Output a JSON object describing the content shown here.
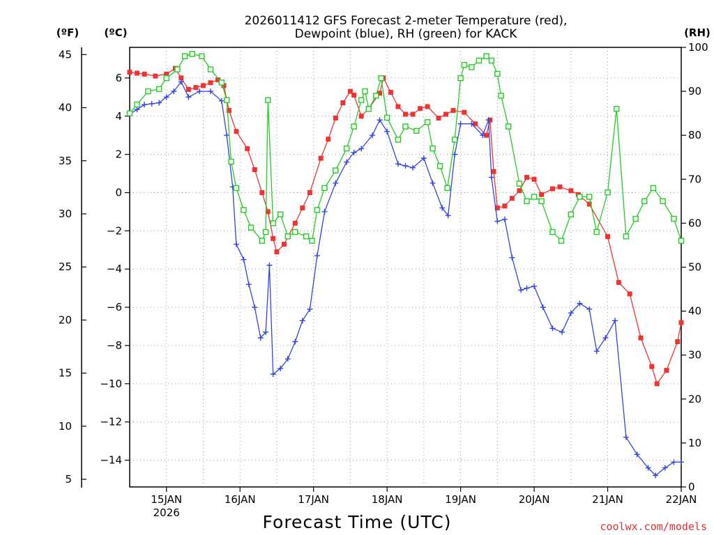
{
  "chart_data": {
    "type": "line",
    "title_line1": "2026011412 GFS Forecast 2-meter Temperature (red),",
    "title_line2": "Dewpoint (blue), RH (green) for KACK",
    "xlabel": "Forecast Time (UTC)",
    "credit": "coolwx.com/models",
    "units": {
      "fahrenheit": "(ºF)",
      "celsius": "(ºC)",
      "rh": "(RH)"
    },
    "x_range_days": [
      14.5,
      22.0
    ],
    "celsius_range": [
      -15.4,
      7.6
    ],
    "rh_range": [
      0,
      100
    ],
    "x_ticks": [
      {
        "day": 15,
        "label": "15JAN",
        "sublabel": "2026"
      },
      {
        "day": 16,
        "label": "16JAN"
      },
      {
        "day": 17,
        "label": "17JAN"
      },
      {
        "day": 18,
        "label": "18JAN"
      },
      {
        "day": 19,
        "label": "19JAN"
      },
      {
        "day": 20,
        "label": "20JAN"
      },
      {
        "day": 21,
        "label": "21JAN"
      },
      {
        "day": 22,
        "label": "22JAN"
      }
    ],
    "celsius_ticks": [
      {
        "value": 6,
        "label": "6"
      },
      {
        "value": 4,
        "label": "4"
      },
      {
        "value": 2,
        "label": "2"
      },
      {
        "value": 0,
        "label": "0"
      },
      {
        "value": -2,
        "label": "−2"
      },
      {
        "value": -4,
        "label": "−4"
      },
      {
        "value": -6,
        "label": "−6"
      },
      {
        "value": -8,
        "label": "−8"
      },
      {
        "value": -10,
        "label": "−10"
      },
      {
        "value": -12,
        "label": "−12"
      },
      {
        "value": -14,
        "label": "−14"
      }
    ],
    "fahrenheit_ticks": [
      {
        "value": 45,
        "label": "45"
      },
      {
        "value": 40,
        "label": "40"
      },
      {
        "value": 35,
        "label": "35"
      },
      {
        "value": 30,
        "label": "30"
      },
      {
        "value": 25,
        "label": "25"
      },
      {
        "value": 20,
        "label": "20"
      },
      {
        "value": 15,
        "label": "15"
      },
      {
        "value": 10,
        "label": "10"
      },
      {
        "value": 5,
        "label": "5"
      }
    ],
    "rh_ticks": [
      {
        "value": 100,
        "label": "100"
      },
      {
        "value": 90,
        "label": "90"
      },
      {
        "value": 80,
        "label": "80"
      },
      {
        "value": 70,
        "label": "70"
      },
      {
        "value": 60,
        "label": "60"
      },
      {
        "value": 50,
        "label": "50"
      },
      {
        "value": 40,
        "label": "40"
      },
      {
        "value": 30,
        "label": "30"
      },
      {
        "value": 20,
        "label": "20"
      },
      {
        "value": 10,
        "label": "10"
      },
      {
        "value": 0,
        "label": "0"
      }
    ],
    "series": [
      {
        "name": "Temperature",
        "unit": "C",
        "color": "#ee3333",
        "marker": "filled-square",
        "anchors": [
          [
            14.5,
            6.3
          ],
          [
            14.7,
            6.2
          ],
          [
            14.85,
            6.1
          ],
          [
            15.0,
            6.2
          ],
          [
            15.12,
            6.5
          ],
          [
            15.2,
            6.0
          ],
          [
            15.3,
            5.4
          ],
          [
            15.5,
            5.6
          ],
          [
            15.7,
            5.9
          ],
          [
            15.78,
            5.6
          ],
          [
            15.85,
            4.3
          ],
          [
            15.95,
            3.2
          ],
          [
            16.1,
            2.3
          ],
          [
            16.2,
            1.2
          ],
          [
            16.3,
            0.0
          ],
          [
            16.38,
            -1.0
          ],
          [
            16.45,
            -2.4
          ],
          [
            16.5,
            -3.1
          ],
          [
            16.6,
            -2.7
          ],
          [
            16.75,
            -1.6
          ],
          [
            16.95,
            0.0
          ],
          [
            17.1,
            1.8
          ],
          [
            17.2,
            2.8
          ],
          [
            17.3,
            3.9
          ],
          [
            17.4,
            4.7
          ],
          [
            17.5,
            5.3
          ],
          [
            17.55,
            5.1
          ],
          [
            17.65,
            4.0
          ],
          [
            17.75,
            4.4
          ],
          [
            17.9,
            5.2
          ],
          [
            17.95,
            6.0
          ],
          [
            18.15,
            4.5
          ],
          [
            18.25,
            4.1
          ],
          [
            18.35,
            4.1
          ],
          [
            18.45,
            4.4
          ],
          [
            18.55,
            4.5
          ],
          [
            18.7,
            3.9
          ],
          [
            18.8,
            4.1
          ],
          [
            18.9,
            4.3
          ],
          [
            19.05,
            4.2
          ],
          [
            19.2,
            3.6
          ],
          [
            19.35,
            3.0
          ],
          [
            19.4,
            3.8
          ],
          [
            19.45,
            1.1
          ],
          [
            19.5,
            -0.8
          ]
        ],
        "points": [
          [
            19.6,
            -0.7
          ],
          [
            19.7,
            -0.3
          ],
          [
            19.8,
            0.1
          ],
          [
            19.9,
            0.8
          ],
          [
            20.0,
            0.7
          ],
          [
            20.1,
            -0.1
          ],
          [
            20.25,
            0.2
          ],
          [
            20.35,
            0.3
          ],
          [
            20.5,
            0.1
          ],
          [
            20.6,
            -0.1
          ],
          [
            20.75,
            -0.6
          ],
          [
            21.0,
            -2.3
          ],
          [
            21.15,
            -4.7
          ],
          [
            21.3,
            -5.3
          ],
          [
            21.45,
            -7.6
          ],
          [
            21.6,
            -9.1
          ],
          [
            21.67,
            -10.0
          ],
          [
            21.8,
            -9.3
          ],
          [
            21.95,
            -7.8
          ],
          [
            22.0,
            -6.8
          ]
        ]
      },
      {
        "name": "Dewpoint",
        "unit": "C",
        "color": "#3344dd",
        "marker": "plus",
        "anchors": [
          [
            14.5,
            4.1
          ],
          [
            14.7,
            4.6
          ],
          [
            14.9,
            4.7
          ],
          [
            15.0,
            5.0
          ],
          [
            15.1,
            5.3
          ],
          [
            15.2,
            5.8
          ],
          [
            15.3,
            5.0
          ],
          [
            15.45,
            5.3
          ],
          [
            15.6,
            5.3
          ],
          [
            15.75,
            4.8
          ],
          [
            15.82,
            3.0
          ],
          [
            15.9,
            0.3
          ],
          [
            15.95,
            -2.7
          ],
          [
            16.05,
            -3.5
          ],
          [
            16.12,
            -4.8
          ],
          [
            16.2,
            -6.0
          ],
          [
            16.28,
            -7.6
          ],
          [
            16.35,
            -7.3
          ],
          [
            16.4,
            -3.8
          ],
          [
            16.45,
            -9.5
          ],
          [
            16.55,
            -9.2
          ],
          [
            16.65,
            -8.7
          ],
          [
            16.75,
            -7.8
          ],
          [
            16.85,
            -6.7
          ],
          [
            16.95,
            -6.1
          ],
          [
            17.05,
            -3.3
          ],
          [
            17.15,
            -1.0
          ],
          [
            17.3,
            0.5
          ],
          [
            17.45,
            1.6
          ],
          [
            17.55,
            2.1
          ],
          [
            17.65,
            2.3
          ],
          [
            17.8,
            3.0
          ],
          [
            17.9,
            3.8
          ],
          [
            18.0,
            3.2
          ],
          [
            18.15,
            1.5
          ],
          [
            18.35,
            1.3
          ],
          [
            18.5,
            1.8
          ],
          [
            18.62,
            0.5
          ],
          [
            18.75,
            -0.8
          ],
          [
            18.83,
            -1.2
          ],
          [
            18.92,
            2.0
          ],
          [
            19.0,
            3.6
          ],
          [
            19.15,
            3.6
          ],
          [
            19.3,
            3.0
          ],
          [
            19.38,
            3.8
          ],
          [
            19.42,
            0.8
          ],
          [
            19.5,
            -1.5
          ]
        ],
        "points": [
          [
            19.6,
            -1.4
          ],
          [
            19.7,
            -3.4
          ],
          [
            19.82,
            -5.1
          ],
          [
            19.9,
            -5.0
          ],
          [
            20.0,
            -4.9
          ],
          [
            20.12,
            -6.0
          ],
          [
            20.25,
            -7.1
          ],
          [
            20.38,
            -7.3
          ],
          [
            20.5,
            -6.3
          ],
          [
            20.62,
            -5.8
          ],
          [
            20.75,
            -6.1
          ],
          [
            20.85,
            -8.3
          ],
          [
            20.97,
            -7.6
          ],
          [
            21.1,
            -6.7
          ],
          [
            21.25,
            -12.8
          ],
          [
            21.4,
            -13.7
          ],
          [
            21.55,
            -14.4
          ],
          [
            21.65,
            -14.8
          ],
          [
            21.78,
            -14.4
          ],
          [
            21.9,
            -14.1
          ],
          [
            22.0,
            -14.1
          ]
        ]
      },
      {
        "name": "RH",
        "unit": "%",
        "color": "#22cc22",
        "marker": "open-square",
        "anchors": [
          [
            14.5,
            85
          ],
          [
            14.6,
            87
          ],
          [
            14.75,
            90
          ],
          [
            14.9,
            90.5
          ],
          [
            15.0,
            93
          ],
          [
            15.15,
            95
          ],
          [
            15.25,
            98
          ],
          [
            15.35,
            98.5
          ],
          [
            15.48,
            98
          ],
          [
            15.6,
            95
          ],
          [
            15.75,
            92
          ],
          [
            15.82,
            88
          ],
          [
            15.88,
            74
          ],
          [
            15.95,
            68
          ],
          [
            16.05,
            63
          ],
          [
            16.15,
            59
          ],
          [
            16.3,
            56
          ],
          [
            16.35,
            58
          ],
          [
            16.38,
            88
          ],
          [
            16.45,
            60
          ],
          [
            16.55,
            62
          ],
          [
            16.65,
            57
          ],
          [
            16.75,
            58
          ],
          [
            16.9,
            57
          ],
          [
            16.98,
            56
          ],
          [
            17.05,
            63
          ],
          [
            17.15,
            68
          ],
          [
            17.3,
            72
          ],
          [
            17.45,
            77
          ],
          [
            17.55,
            82
          ],
          [
            17.65,
            88
          ],
          [
            17.7,
            90
          ],
          [
            17.75,
            86
          ],
          [
            17.85,
            89
          ],
          [
            17.92,
            93
          ],
          [
            18.0,
            84
          ],
          [
            18.15,
            79
          ],
          [
            18.25,
            82
          ],
          [
            18.4,
            81
          ],
          [
            18.55,
            83
          ],
          [
            18.62,
            77
          ],
          [
            18.72,
            73
          ],
          [
            18.82,
            68
          ],
          [
            18.92,
            79
          ],
          [
            19.0,
            93
          ],
          [
            19.05,
            96
          ],
          [
            19.15,
            95.5
          ],
          [
            19.25,
            97
          ],
          [
            19.35,
            98
          ],
          [
            19.42,
            97
          ],
          [
            19.5,
            94
          ],
          [
            19.55,
            89
          ],
          [
            19.65,
            82
          ]
        ],
        "points": [
          [
            19.8,
            69
          ],
          [
            19.9,
            65
          ],
          [
            20.0,
            66
          ],
          [
            20.1,
            65
          ],
          [
            20.25,
            58
          ],
          [
            20.37,
            56
          ],
          [
            20.5,
            62
          ],
          [
            20.62,
            66
          ],
          [
            20.75,
            66
          ],
          [
            20.85,
            58
          ],
          [
            21.0,
            67
          ],
          [
            21.12,
            86
          ],
          [
            21.25,
            57
          ],
          [
            21.38,
            61
          ],
          [
            21.5,
            65
          ],
          [
            21.62,
            68
          ],
          [
            21.75,
            65
          ],
          [
            21.9,
            61
          ],
          [
            22.0,
            56
          ]
        ]
      }
    ]
  }
}
